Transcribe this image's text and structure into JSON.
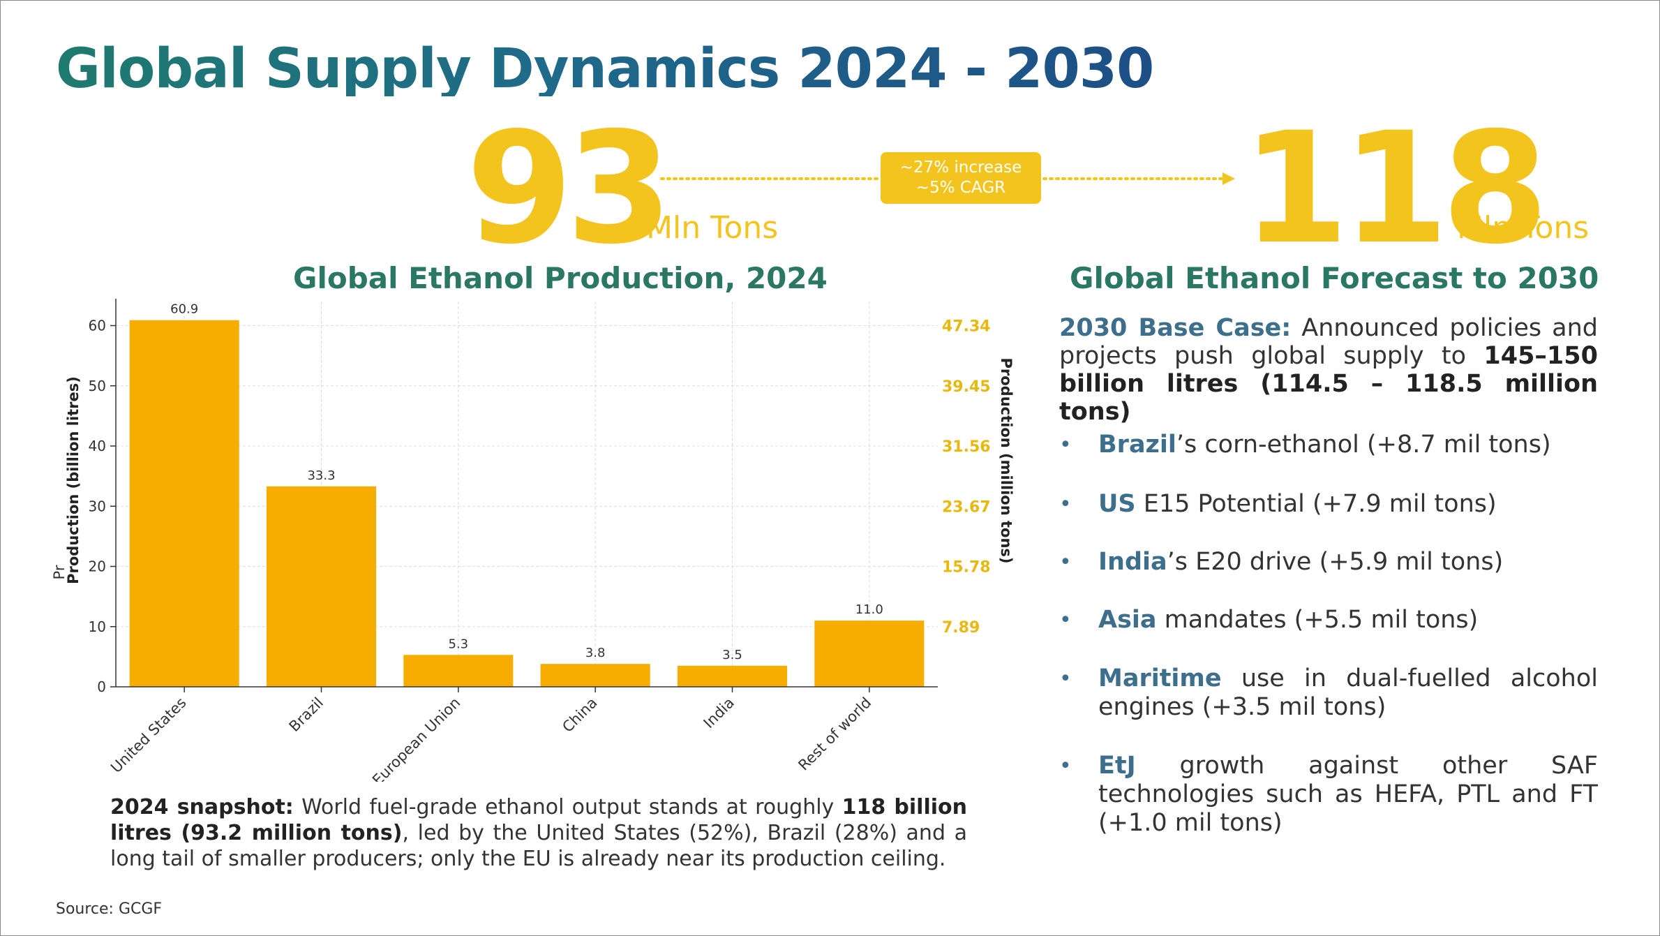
{
  "title": "Global Supply Dynamics 2024 - 2030",
  "headline": {
    "start_value": "93",
    "start_unit": "Mln Tons",
    "end_value": "118",
    "end_unit": "Mln Tons",
    "increase_line1": "~27% increase",
    "increase_line2": "~5% CAGR"
  },
  "left_section_title": "Global Ethanol Production, 2024",
  "right_section_title": "Global Ethanol Forecast to 2030",
  "chart_data": {
    "type": "bar",
    "categories": [
      "United States",
      "Brazil",
      "European Union",
      "China",
      "India",
      "Rest of world"
    ],
    "values": [
      60.9,
      33.3,
      5.3,
      3.8,
      3.5,
      11.0
    ],
    "data_labels": [
      "60.9",
      "33.3",
      "5.3",
      "3.8",
      "3.5",
      "11.0"
    ],
    "ylabel": "Production (billion litres)",
    "ylabel_fragment": "Pr",
    "y2label": "Production (million tons)",
    "ylim": [
      0,
      64
    ],
    "yticks": [
      0,
      10,
      20,
      30,
      40,
      50,
      60
    ],
    "y2_ticks": [
      {
        "value": 10,
        "label": "7.89"
      },
      {
        "value": 20,
        "label": "15.78"
      },
      {
        "value": 30,
        "label": "23.67"
      },
      {
        "value": 40,
        "label": "31.56"
      },
      {
        "value": 50,
        "label": "39.45"
      },
      {
        "value": 60,
        "label": "47.34"
      }
    ],
    "grid": true,
    "bar_color": "#f6ad00",
    "y2_color": "#e8b80f"
  },
  "snapshot": {
    "label": "2024 snapshot:",
    "text1": " World fuel-grade ethanol output stands at roughly ",
    "bold1": "118 billion litres (93.2 million tons)",
    "text2": ", led by the United States (52%), Brazil (28%) and a long tail of smaller producers; only the EU is already near its production ceiling."
  },
  "source": "Source:  GCGF",
  "base_case": {
    "label": "2030 Base Case:",
    "text": " Announced policies and projects push global supply to ",
    "bold": "145–150 billion litres (114.5 – 118.5 million tons)"
  },
  "bullets": [
    {
      "highlight": "Brazil",
      "text": "’s corn-ethanol (+8.7 mil tons)"
    },
    {
      "highlight": "US",
      "text": " E15 Potential (+7.9 mil tons)"
    },
    {
      "highlight": "India",
      "text": "’s E20 drive (+5.9 mil tons)"
    },
    {
      "highlight": "Asia",
      "text": " mandates (+5.5 mil tons)"
    },
    {
      "highlight": "Maritime",
      "text": " use in dual-fuelled alcohol engines (+3.5 mil tons)"
    },
    {
      "highlight": "EtJ",
      "text": " growth against other SAF technologies such as HEFA, PTL and FT (+1.0 mil tons)"
    }
  ],
  "bullet_symbol": "•",
  "colors": {
    "accent_yellow": "#f2c41d",
    "title_teal": "#2a7764",
    "highlight_blue": "#3d6f8d"
  }
}
